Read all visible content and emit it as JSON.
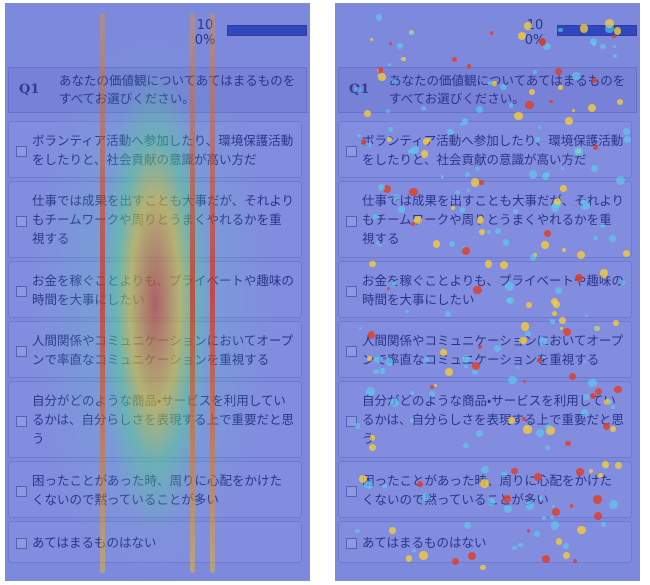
{
  "panels": [
    {
      "progress_count": "10",
      "progress_percent": "0%",
      "question_label": "Q1",
      "question": "あなたの価値観についてあてはまるものをすべてお選びください。",
      "options": [
        "ボランティア活動へ参加したり、環境保護活動をしたりと、社会貢献の意識が高い方だ",
        "仕事では成果を出すことも大事だが、それよりもチームワークや周りとうまくやれるかを重視する",
        "お金を稼ぐことよりも、プライベートや趣味の時間を大事にしたい",
        "人間関係やコミュニケーションにおいてオープンで率直なコミュニケーションを重視する",
        "自分がどのような商品・サービスを利用しているかは、自分らしさを表現する上で重要だと思う",
        "困ったことがあった時、周りに心配をかけたくないので黙っていることが多い",
        "あてはまるものはない"
      ]
    },
    {
      "progress_count": "10",
      "progress_percent": "0%",
      "question_label": "Q1",
      "question": "あなたの価値観についてあてはまるものをすべてお選びください。",
      "options": [
        "ボランティア活動へ参加したり、環境保護活動をしたりと、社会貢献の意識が高い方だ",
        "仕事では成果を出すことも大事だが、それよりもチームワークや周りとうまくやれるかを重視する",
        "お金を稼ぐことよりも、プライベートや趣味の時間を大事にしたい",
        "人間関係やコミュニケーションにおいてオープンで率直なコミュニケーションを重視する",
        "自分がどのような商品・サービスを利用しているかは、自分らしさを表現する上で重要だと思う",
        "困ったことがあった時、周りに心配をかけたくないので黙っていることが多い",
        "あてはまるものはない"
      ]
    }
  ]
}
